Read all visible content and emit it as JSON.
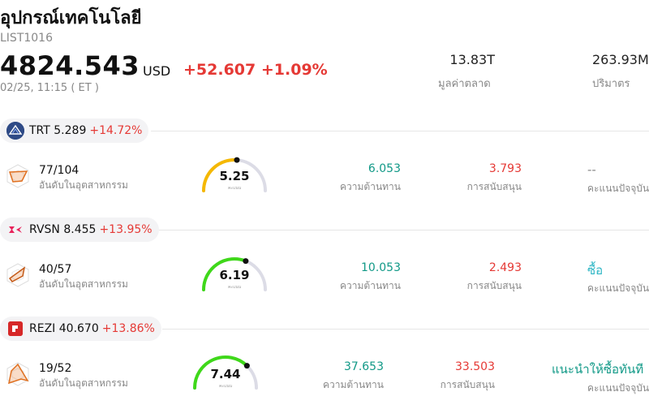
{
  "header": {
    "title": "อุปกรณ์เทคโนโลยี",
    "code": "LIST1016",
    "price": "4824.543",
    "currency": "USD",
    "change": "+52.607",
    "change_pct": "+1.09%",
    "time": "02/25, 11:15  ( ET )",
    "market_cap": "13.83T",
    "market_cap_label": "มูลค่าตลาด",
    "volume": "263.93M",
    "volume_label": "ปริมาตร"
  },
  "colors": {
    "down": "#e53935",
    "resistance": "#119987",
    "rating_buy": "#2bb5c4",
    "gauge_yellow": "#f5b800",
    "gauge_green": "#3fd81a"
  },
  "stocks": [
    {
      "symbol": "TRT",
      "price": "5.289",
      "change_pct": "+14.72%",
      "logo_icon": "trt-logo-icon",
      "rank": "77/104",
      "rank_label": "อันดับในอุตสาหกรรม",
      "score": "5.25",
      "score_sub": "คะแนน",
      "score_value": 5.25,
      "resistance": "6.053",
      "resistance_label": "ความต้านทาน",
      "support": "3.793",
      "support_label": "การสนับสนุน",
      "rating": "--",
      "rating_label": "คะแนนปัจจุบัน"
    },
    {
      "symbol": "RVSN",
      "price": "8.455",
      "change_pct": "+13.95%",
      "logo_icon": "rvsn-logo-icon",
      "rank": "40/57",
      "rank_label": "อันดับในอุตสาหกรรม",
      "score": "6.19",
      "score_sub": "คะแนน",
      "score_value": 6.19,
      "resistance": "10.053",
      "resistance_label": "ความต้านทาน",
      "support": "2.493",
      "support_label": "การสนับสนุน",
      "rating": "ซื้อ",
      "rating_label": "คะแนนปัจจุบัน"
    },
    {
      "symbol": "REZI",
      "price": "40.670",
      "change_pct": "+13.86%",
      "logo_icon": "rezi-logo-icon",
      "rank": "19/52",
      "rank_label": "อันดับในอุตสาหกรรม",
      "score": "7.44",
      "score_sub": "คะแนน",
      "score_value": 7.44,
      "resistance": "37.653",
      "resistance_label": "ความต้านทาน",
      "support": "33.503",
      "support_label": "การสนับสนุน",
      "rating": "แนะนำให้ซื้อทันที",
      "rating_label": "คะแนนปัจจุบัน"
    }
  ]
}
